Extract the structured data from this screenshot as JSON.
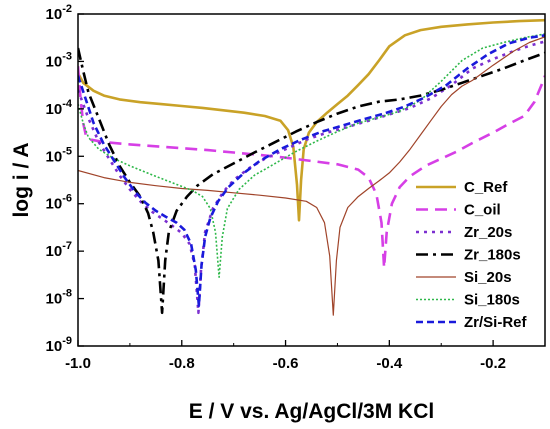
{
  "chart_data": {
    "type": "line",
    "xlabel": "E / V vs. Ag/AgCl/3M KCl",
    "ylabel": "log i / A",
    "xlim": [
      -1.0,
      -0.1
    ],
    "ylim_log10": [
      -9,
      -2
    ],
    "x_ticks": [
      {
        "v": -1.0,
        "label": "-1.0"
      },
      {
        "v": -0.8,
        "label": "-0.8"
      },
      {
        "v": -0.6,
        "label": "-0.6"
      },
      {
        "v": -0.4,
        "label": "-0.4"
      },
      {
        "v": -0.2,
        "label": "-0.2"
      }
    ],
    "y_ticks": [
      {
        "exp": -9,
        "base": "10",
        "sup": "-9"
      },
      {
        "exp": -8,
        "base": "10",
        "sup": "-8"
      },
      {
        "exp": -7,
        "base": "10",
        "sup": "-7"
      },
      {
        "exp": -6,
        "base": "10",
        "sup": "-6"
      },
      {
        "exp": -5,
        "base": "10",
        "sup": "-5"
      },
      {
        "exp": -4,
        "base": "10",
        "sup": "-4"
      },
      {
        "exp": -3,
        "base": "10",
        "sup": "-3"
      },
      {
        "exp": -2,
        "base": "10",
        "sup": "-2"
      }
    ],
    "grid": false,
    "legend_position": "bottom-right",
    "series": [
      {
        "name": "C_Ref",
        "color": "#c9a227",
        "dash": "",
        "width": 2.6,
        "points": [
          [
            -1.0,
            -3.25
          ],
          [
            -0.99,
            -3.45
          ],
          [
            -0.97,
            -3.62
          ],
          [
            -0.95,
            -3.72
          ],
          [
            -0.92,
            -3.8
          ],
          [
            -0.88,
            -3.86
          ],
          [
            -0.84,
            -3.9
          ],
          [
            -0.8,
            -3.94
          ],
          [
            -0.76,
            -3.98
          ],
          [
            -0.72,
            -4.03
          ],
          [
            -0.68,
            -4.08
          ],
          [
            -0.64,
            -4.15
          ],
          [
            -0.61,
            -4.25
          ],
          [
            -0.595,
            -4.45
          ],
          [
            -0.585,
            -4.8
          ],
          [
            -0.578,
            -5.6
          ],
          [
            -0.574,
            -6.35
          ],
          [
            -0.57,
            -5.5
          ],
          [
            -0.565,
            -4.85
          ],
          [
            -0.555,
            -4.5
          ],
          [
            -0.54,
            -4.28
          ],
          [
            -0.52,
            -4.08
          ],
          [
            -0.5,
            -3.9
          ],
          [
            -0.48,
            -3.72
          ],
          [
            -0.46,
            -3.5
          ],
          [
            -0.44,
            -3.27
          ],
          [
            -0.42,
            -2.98
          ],
          [
            -0.4,
            -2.68
          ],
          [
            -0.37,
            -2.45
          ],
          [
            -0.34,
            -2.34
          ],
          [
            -0.3,
            -2.27
          ],
          [
            -0.25,
            -2.22
          ],
          [
            -0.2,
            -2.18
          ],
          [
            -0.15,
            -2.15
          ],
          [
            -0.1,
            -2.13
          ]
        ]
      },
      {
        "name": "C_oil",
        "color": "#d63fe6",
        "dash": "12,7",
        "width": 2.6,
        "points": [
          [
            -1.0,
            -3.1
          ],
          [
            -0.995,
            -3.8
          ],
          [
            -0.99,
            -4.3
          ],
          [
            -0.985,
            -4.55
          ],
          [
            -0.975,
            -4.65
          ],
          [
            -0.95,
            -4.7
          ],
          [
            -0.9,
            -4.75
          ],
          [
            -0.85,
            -4.79
          ],
          [
            -0.8,
            -4.83
          ],
          [
            -0.75,
            -4.87
          ],
          [
            -0.7,
            -4.92
          ],
          [
            -0.65,
            -4.97
          ],
          [
            -0.6,
            -5.03
          ],
          [
            -0.55,
            -5.1
          ],
          [
            -0.5,
            -5.17
          ],
          [
            -0.46,
            -5.28
          ],
          [
            -0.44,
            -5.45
          ],
          [
            -0.425,
            -5.8
          ],
          [
            -0.415,
            -6.4
          ],
          [
            -0.41,
            -7.35
          ],
          [
            -0.405,
            -6.6
          ],
          [
            -0.395,
            -6.0
          ],
          [
            -0.38,
            -5.65
          ],
          [
            -0.36,
            -5.42
          ],
          [
            -0.33,
            -5.2
          ],
          [
            -0.3,
            -5.05
          ],
          [
            -0.27,
            -4.9
          ],
          [
            -0.24,
            -4.72
          ],
          [
            -0.2,
            -4.5
          ],
          [
            -0.17,
            -4.32
          ],
          [
            -0.14,
            -4.15
          ],
          [
            -0.12,
            -3.85
          ],
          [
            -0.105,
            -3.45
          ],
          [
            -0.1,
            -3.3
          ]
        ]
      },
      {
        "name": "Zr_20s",
        "color": "#7b2fd0",
        "dash": "3,5",
        "width": 2.6,
        "points": [
          [
            -1.0,
            -3.6
          ],
          [
            -0.98,
            -4.2
          ],
          [
            -0.96,
            -4.7
          ],
          [
            -0.94,
            -5.05
          ],
          [
            -0.92,
            -5.4
          ],
          [
            -0.9,
            -5.7
          ],
          [
            -0.88,
            -5.95
          ],
          [
            -0.86,
            -6.15
          ],
          [
            -0.84,
            -6.3
          ],
          [
            -0.82,
            -6.45
          ],
          [
            -0.8,
            -6.62
          ],
          [
            -0.785,
            -6.85
          ],
          [
            -0.775,
            -7.3
          ],
          [
            -0.768,
            -8.3
          ],
          [
            -0.763,
            -7.4
          ],
          [
            -0.755,
            -6.6
          ],
          [
            -0.74,
            -6.1
          ],
          [
            -0.72,
            -5.75
          ],
          [
            -0.7,
            -5.5
          ],
          [
            -0.67,
            -5.25
          ],
          [
            -0.64,
            -5.05
          ],
          [
            -0.6,
            -4.85
          ],
          [
            -0.56,
            -4.65
          ],
          [
            -0.52,
            -4.5
          ],
          [
            -0.48,
            -4.38
          ],
          [
            -0.44,
            -4.25
          ],
          [
            -0.4,
            -4.12
          ],
          [
            -0.36,
            -3.98
          ],
          [
            -0.32,
            -3.78
          ],
          [
            -0.28,
            -3.5
          ],
          [
            -0.24,
            -3.15
          ],
          [
            -0.2,
            -2.95
          ],
          [
            -0.16,
            -2.78
          ],
          [
            -0.13,
            -2.67
          ],
          [
            -0.1,
            -2.58
          ]
        ]
      },
      {
        "name": "Zr_180s",
        "color": "#000000",
        "dash": "12,5,3,5",
        "width": 2.6,
        "points": [
          [
            -1.0,
            -2.72
          ],
          [
            -0.99,
            -3.2
          ],
          [
            -0.98,
            -3.65
          ],
          [
            -0.96,
            -4.2
          ],
          [
            -0.94,
            -4.75
          ],
          [
            -0.92,
            -5.2
          ],
          [
            -0.9,
            -5.55
          ],
          [
            -0.88,
            -5.85
          ],
          [
            -0.865,
            -6.2
          ],
          [
            -0.855,
            -6.6
          ],
          [
            -0.845,
            -7.2
          ],
          [
            -0.838,
            -8.3
          ],
          [
            -0.832,
            -7.2
          ],
          [
            -0.825,
            -6.6
          ],
          [
            -0.81,
            -6.15
          ],
          [
            -0.79,
            -5.85
          ],
          [
            -0.77,
            -5.62
          ],
          [
            -0.74,
            -5.38
          ],
          [
            -0.7,
            -5.15
          ],
          [
            -0.66,
            -4.92
          ],
          [
            -0.62,
            -4.7
          ],
          [
            -0.58,
            -4.48
          ],
          [
            -0.54,
            -4.28
          ],
          [
            -0.5,
            -4.1
          ],
          [
            -0.46,
            -3.95
          ],
          [
            -0.42,
            -3.85
          ],
          [
            -0.38,
            -3.8
          ],
          [
            -0.34,
            -3.72
          ],
          [
            -0.3,
            -3.6
          ],
          [
            -0.26,
            -3.45
          ],
          [
            -0.22,
            -3.3
          ],
          [
            -0.18,
            -3.15
          ],
          [
            -0.14,
            -2.98
          ],
          [
            -0.1,
            -2.82
          ]
        ]
      },
      {
        "name": "Si_20s",
        "color": "#a0442a",
        "dash": "",
        "width": 1.2,
        "points": [
          [
            -1.0,
            -5.3
          ],
          [
            -0.95,
            -5.45
          ],
          [
            -0.9,
            -5.55
          ],
          [
            -0.85,
            -5.62
          ],
          [
            -0.8,
            -5.68
          ],
          [
            -0.75,
            -5.72
          ],
          [
            -0.7,
            -5.77
          ],
          [
            -0.65,
            -5.82
          ],
          [
            -0.6,
            -5.88
          ],
          [
            -0.56,
            -5.95
          ],
          [
            -0.54,
            -6.08
          ],
          [
            -0.525,
            -6.4
          ],
          [
            -0.515,
            -7.1
          ],
          [
            -0.508,
            -8.35
          ],
          [
            -0.502,
            -7.2
          ],
          [
            -0.495,
            -6.5
          ],
          [
            -0.48,
            -6.08
          ],
          [
            -0.46,
            -5.85
          ],
          [
            -0.44,
            -5.68
          ],
          [
            -0.42,
            -5.52
          ],
          [
            -0.4,
            -5.35
          ],
          [
            -0.38,
            -5.12
          ],
          [
            -0.36,
            -4.85
          ],
          [
            -0.34,
            -4.55
          ],
          [
            -0.32,
            -4.25
          ],
          [
            -0.3,
            -3.95
          ],
          [
            -0.28,
            -3.7
          ],
          [
            -0.26,
            -3.52
          ],
          [
            -0.24,
            -3.4
          ],
          [
            -0.2,
            -3.08
          ],
          [
            -0.16,
            -2.78
          ],
          [
            -0.13,
            -2.6
          ],
          [
            -0.1,
            -2.48
          ]
        ]
      },
      {
        "name": "Si_180s",
        "color": "#2fb84a",
        "dash": "2,2",
        "width": 1.6,
        "points": [
          [
            -1.0,
            -3.9
          ],
          [
            -0.99,
            -4.3
          ],
          [
            -0.98,
            -4.6
          ],
          [
            -0.96,
            -4.85
          ],
          [
            -0.93,
            -5.05
          ],
          [
            -0.9,
            -5.2
          ],
          [
            -0.86,
            -5.38
          ],
          [
            -0.82,
            -5.55
          ],
          [
            -0.78,
            -5.72
          ],
          [
            -0.76,
            -5.85
          ],
          [
            -0.745,
            -6.1
          ],
          [
            -0.735,
            -6.6
          ],
          [
            -0.728,
            -7.55
          ],
          [
            -0.722,
            -6.7
          ],
          [
            -0.712,
            -6.1
          ],
          [
            -0.69,
            -5.7
          ],
          [
            -0.66,
            -5.4
          ],
          [
            -0.62,
            -5.15
          ],
          [
            -0.58,
            -4.9
          ],
          [
            -0.54,
            -4.68
          ],
          [
            -0.5,
            -4.48
          ],
          [
            -0.46,
            -4.3
          ],
          [
            -0.42,
            -4.18
          ],
          [
            -0.38,
            -4.05
          ],
          [
            -0.34,
            -3.82
          ],
          [
            -0.3,
            -3.42
          ],
          [
            -0.26,
            -2.98
          ],
          [
            -0.22,
            -2.72
          ],
          [
            -0.18,
            -2.6
          ],
          [
            -0.14,
            -2.5
          ],
          [
            -0.1,
            -2.42
          ]
        ]
      },
      {
        "name": "Zr/Si-Ref",
        "color": "#1a1adb",
        "dash": "7,4",
        "width": 2.6,
        "points": [
          [
            -1.0,
            -3.3
          ],
          [
            -0.985,
            -3.8
          ],
          [
            -0.97,
            -4.3
          ],
          [
            -0.95,
            -4.75
          ],
          [
            -0.93,
            -5.1
          ],
          [
            -0.91,
            -5.45
          ],
          [
            -0.89,
            -5.75
          ],
          [
            -0.87,
            -5.98
          ],
          [
            -0.85,
            -6.15
          ],
          [
            -0.83,
            -6.28
          ],
          [
            -0.81,
            -6.4
          ],
          [
            -0.795,
            -6.55
          ],
          [
            -0.782,
            -6.85
          ],
          [
            -0.773,
            -7.4
          ],
          [
            -0.767,
            -8.15
          ],
          [
            -0.762,
            -7.3
          ],
          [
            -0.755,
            -6.7
          ],
          [
            -0.745,
            -6.3
          ],
          [
            -0.73,
            -5.95
          ],
          [
            -0.71,
            -5.65
          ],
          [
            -0.68,
            -5.35
          ],
          [
            -0.65,
            -5.1
          ],
          [
            -0.61,
            -4.85
          ],
          [
            -0.57,
            -4.65
          ],
          [
            -0.53,
            -4.48
          ],
          [
            -0.49,
            -4.35
          ],
          [
            -0.45,
            -4.22
          ],
          [
            -0.41,
            -4.1
          ],
          [
            -0.37,
            -3.95
          ],
          [
            -0.33,
            -3.75
          ],
          [
            -0.29,
            -3.5
          ],
          [
            -0.25,
            -3.15
          ],
          [
            -0.21,
            -2.85
          ],
          [
            -0.17,
            -2.62
          ],
          [
            -0.13,
            -2.5
          ],
          [
            -0.1,
            -2.45
          ]
        ]
      }
    ]
  }
}
